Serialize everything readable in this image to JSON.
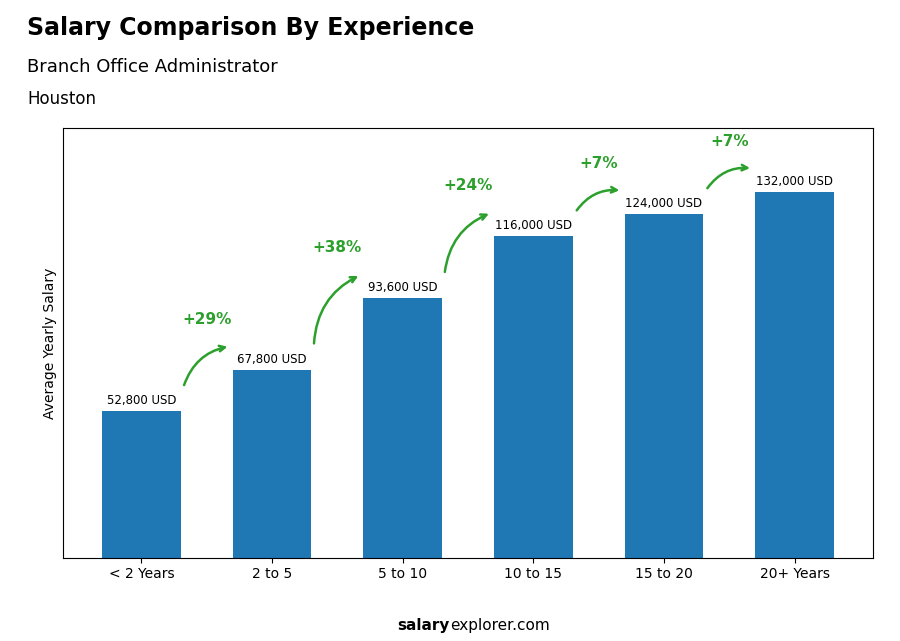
{
  "chart_data": {
    "type": "bar",
    "title": "Salary Comparison By Experience",
    "subtitle": [
      "Branch Office Administrator",
      "Houston"
    ],
    "ylabel": "Average Yearly Salary",
    "categories": [
      "< 2 Years",
      "2 to 5",
      "5 to 10",
      "10 to 15",
      "15 to 20",
      "20+ Years"
    ],
    "values": [
      52800,
      67800,
      93600,
      116000,
      124000,
      132000
    ],
    "value_labels": [
      "52,800 USD",
      "67,800 USD",
      "93,600 USD",
      "116,000 USD",
      "124,000 USD",
      "132,000 USD"
    ],
    "data_labels": true,
    "pct_changes": [
      null,
      "+29%",
      "+38%",
      "+24%",
      "+7%",
      "+7%"
    ],
    "footer": [
      "salary",
      "explorer.com"
    ],
    "ylim": [
      0,
      155000
    ],
    "tick_labels": "x",
    "grid": false
  }
}
